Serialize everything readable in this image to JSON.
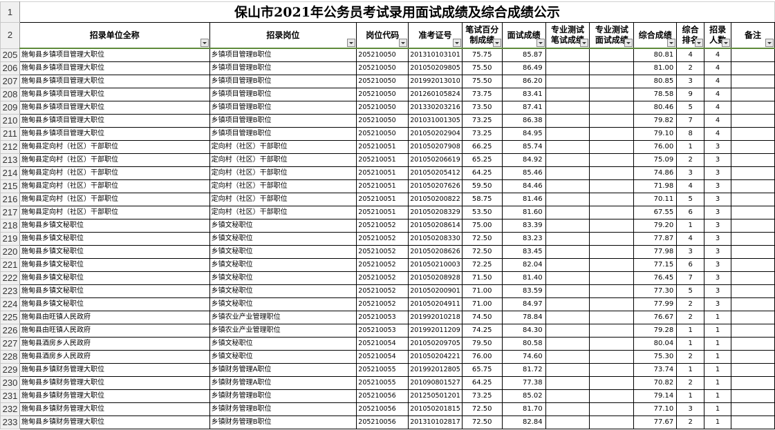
{
  "title": "保山市2021年公务员考试录用面试成绩及综合成绩公示",
  "title_row_num": "1",
  "header_row_num": "2",
  "headers": [
    "招录单位全称",
    "招录岗位",
    "岗位代码",
    "准考证号",
    "笔试百分制成绩",
    "面试成绩",
    "专业测试笔试成绩",
    "专业测试面试成绩",
    "综合成绩",
    "综合排名",
    "招录人数",
    "备注"
  ],
  "rows": [
    [
      "205",
      "施甸县乡镇项目管理大职位",
      "乡镇项目管理B职位",
      "205210050",
      "201310103101",
      "75.75",
      "85.87",
      "",
      "",
      "80.81",
      "4",
      "4",
      ""
    ],
    [
      "206",
      "施甸县乡镇项目管理大职位",
      "乡镇项目管理B职位",
      "205210050",
      "201050209805",
      "75.50",
      "86.49",
      "",
      "",
      "81.00",
      "2",
      "4",
      ""
    ],
    [
      "207",
      "施甸县乡镇项目管理大职位",
      "乡镇项目管理B职位",
      "205210050",
      "201992013010",
      "75.50",
      "86.20",
      "",
      "",
      "80.85",
      "3",
      "4",
      ""
    ],
    [
      "208",
      "施甸县乡镇项目管理大职位",
      "乡镇项目管理B职位",
      "205210050",
      "201260105824",
      "73.75",
      "83.41",
      "",
      "",
      "78.58",
      "9",
      "4",
      ""
    ],
    [
      "209",
      "施甸县乡镇项目管理大职位",
      "乡镇项目管理B职位",
      "205210050",
      "201330203216",
      "73.50",
      "87.41",
      "",
      "",
      "80.46",
      "5",
      "4",
      ""
    ],
    [
      "210",
      "施甸县乡镇项目管理大职位",
      "乡镇项目管理B职位",
      "205210050",
      "201031001305",
      "73.25",
      "86.38",
      "",
      "",
      "79.82",
      "7",
      "4",
      ""
    ],
    [
      "211",
      "施甸县乡镇项目管理大职位",
      "乡镇项目管理B职位",
      "205210050",
      "201050202904",
      "73.25",
      "84.95",
      "",
      "",
      "79.10",
      "8",
      "4",
      ""
    ],
    [
      "212",
      "施甸县定向村（社区）干部职位",
      "定向村（社区）干部职位",
      "205210051",
      "201050207908",
      "66.25",
      "85.74",
      "",
      "",
      "76.00",
      "1",
      "3",
      ""
    ],
    [
      "213",
      "施甸县定向村（社区）干部职位",
      "定向村（社区）干部职位",
      "205210051",
      "201050206619",
      "65.25",
      "84.92",
      "",
      "",
      "75.09",
      "2",
      "3",
      ""
    ],
    [
      "214",
      "施甸县定向村（社区）干部职位",
      "定向村（社区）干部职位",
      "205210051",
      "201050205412",
      "64.25",
      "85.46",
      "",
      "",
      "74.86",
      "3",
      "3",
      ""
    ],
    [
      "215",
      "施甸县定向村（社区）干部职位",
      "定向村（社区）干部职位",
      "205210051",
      "201050207626",
      "59.50",
      "84.46",
      "",
      "",
      "71.98",
      "4",
      "3",
      ""
    ],
    [
      "216",
      "施甸县定向村（社区）干部职位",
      "定向村（社区）干部职位",
      "205210051",
      "201050200822",
      "58.75",
      "81.46",
      "",
      "",
      "70.11",
      "5",
      "3",
      ""
    ],
    [
      "217",
      "施甸县定向村（社区）干部职位",
      "定向村（社区）干部职位",
      "205210051",
      "201050208329",
      "53.50",
      "81.60",
      "",
      "",
      "67.55",
      "6",
      "3",
      ""
    ],
    [
      "218",
      "施甸县乡镇文秘职位",
      "乡镇文秘职位",
      "205210052",
      "201050208614",
      "75.00",
      "83.39",
      "",
      "",
      "79.20",
      "1",
      "3",
      ""
    ],
    [
      "219",
      "施甸县乡镇文秘职位",
      "乡镇文秘职位",
      "205210052",
      "201050208330",
      "72.50",
      "83.23",
      "",
      "",
      "77.87",
      "4",
      "3",
      ""
    ],
    [
      "220",
      "施甸县乡镇文秘职位",
      "乡镇文秘职位",
      "205210052",
      "201050208626",
      "72.50",
      "83.45",
      "",
      "",
      "77.98",
      "3",
      "3",
      ""
    ],
    [
      "221",
      "施甸县乡镇文秘职位",
      "乡镇文秘职位",
      "205210052",
      "201050210003",
      "72.25",
      "82.04",
      "",
      "",
      "77.15",
      "6",
      "3",
      ""
    ],
    [
      "222",
      "施甸县乡镇文秘职位",
      "乡镇文秘职位",
      "205210052",
      "201050208928",
      "71.50",
      "81.40",
      "",
      "",
      "76.45",
      "7",
      "3",
      ""
    ],
    [
      "223",
      "施甸县乡镇文秘职位",
      "乡镇文秘职位",
      "205210052",
      "201050200901",
      "71.00",
      "83.59",
      "",
      "",
      "77.30",
      "5",
      "3",
      ""
    ],
    [
      "224",
      "施甸县乡镇文秘职位",
      "乡镇文秘职位",
      "205210052",
      "201050204911",
      "71.00",
      "84.97",
      "",
      "",
      "77.99",
      "2",
      "3",
      ""
    ],
    [
      "225",
      "施甸县由旺镇人民政府",
      "乡镇农业产业管理职位",
      "205210053",
      "201992010218",
      "74.50",
      "78.84",
      "",
      "",
      "76.67",
      "2",
      "1",
      ""
    ],
    [
      "226",
      "施甸县由旺镇人民政府",
      "乡镇农业产业管理职位",
      "205210053",
      "201992011209",
      "74.25",
      "84.30",
      "",
      "",
      "79.28",
      "1",
      "1",
      ""
    ],
    [
      "227",
      "施甸县酒房乡人民政府",
      "乡镇文秘职位",
      "205210054",
      "201050209705",
      "79.50",
      "80.58",
      "",
      "",
      "80.04",
      "1",
      "1",
      ""
    ],
    [
      "228",
      "施甸县酒房乡人民政府",
      "乡镇文秘职位",
      "205210054",
      "201050204221",
      "76.00",
      "74.60",
      "",
      "",
      "75.30",
      "2",
      "1",
      ""
    ],
    [
      "229",
      "施甸县乡镇财务管理大职位",
      "乡镇财务管理A职位",
      "205210055",
      "201992012805",
      "65.75",
      "81.72",
      "",
      "",
      "73.74",
      "1",
      "1",
      ""
    ],
    [
      "230",
      "施甸县乡镇财务管理大职位",
      "乡镇财务管理A职位",
      "205210055",
      "201090801527",
      "64.25",
      "77.38",
      "",
      "",
      "70.82",
      "2",
      "1",
      ""
    ],
    [
      "231",
      "施甸县乡镇财务管理大职位",
      "乡镇财务管理B职位",
      "205210056",
      "201250501201",
      "73.25",
      "85.02",
      "",
      "",
      "79.14",
      "1",
      "1",
      ""
    ],
    [
      "232",
      "施甸县乡镇财务管理大职位",
      "乡镇财务管理B职位",
      "205210056",
      "201050201815",
      "72.50",
      "81.70",
      "",
      "",
      "77.10",
      "3",
      "1",
      ""
    ],
    [
      "233",
      "施甸县乡镇财务管理大职位",
      "乡镇财务管理B职位",
      "205210056",
      "201310102817",
      "72.50",
      "82.84",
      "",
      "",
      "77.67",
      "2",
      "1",
      ""
    ]
  ]
}
